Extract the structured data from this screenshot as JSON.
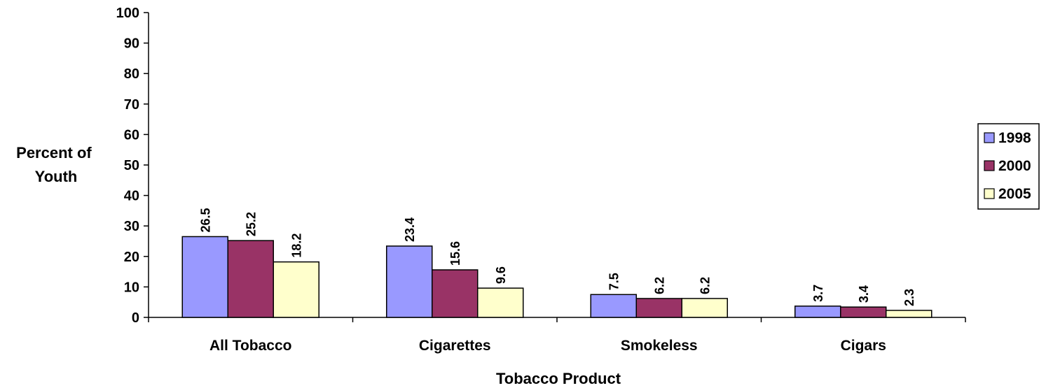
{
  "chart_data": {
    "type": "bar",
    "title": "",
    "xlabel": "Tobacco Product",
    "ylabel_lines": [
      "Percent of",
      "Youth"
    ],
    "categories": [
      "All Tobacco",
      "Cigarettes",
      "Smokeless",
      "Cigars"
    ],
    "series": [
      {
        "name": "1998",
        "color": "#9999ff",
        "values": [
          26.5,
          23.4,
          7.5,
          3.7
        ]
      },
      {
        "name": "2000",
        "color": "#993366",
        "values": [
          25.2,
          15.6,
          6.2,
          3.4
        ]
      },
      {
        "name": "2005",
        "color": "#ffffcc",
        "values": [
          18.2,
          9.6,
          6.2,
          2.3
        ]
      }
    ],
    "ylim": [
      0,
      100
    ],
    "yticks": [
      0,
      10,
      20,
      30,
      40,
      50,
      60,
      70,
      80,
      90,
      100
    ],
    "grid": false,
    "legend_position": "right",
    "data_labels": true
  }
}
